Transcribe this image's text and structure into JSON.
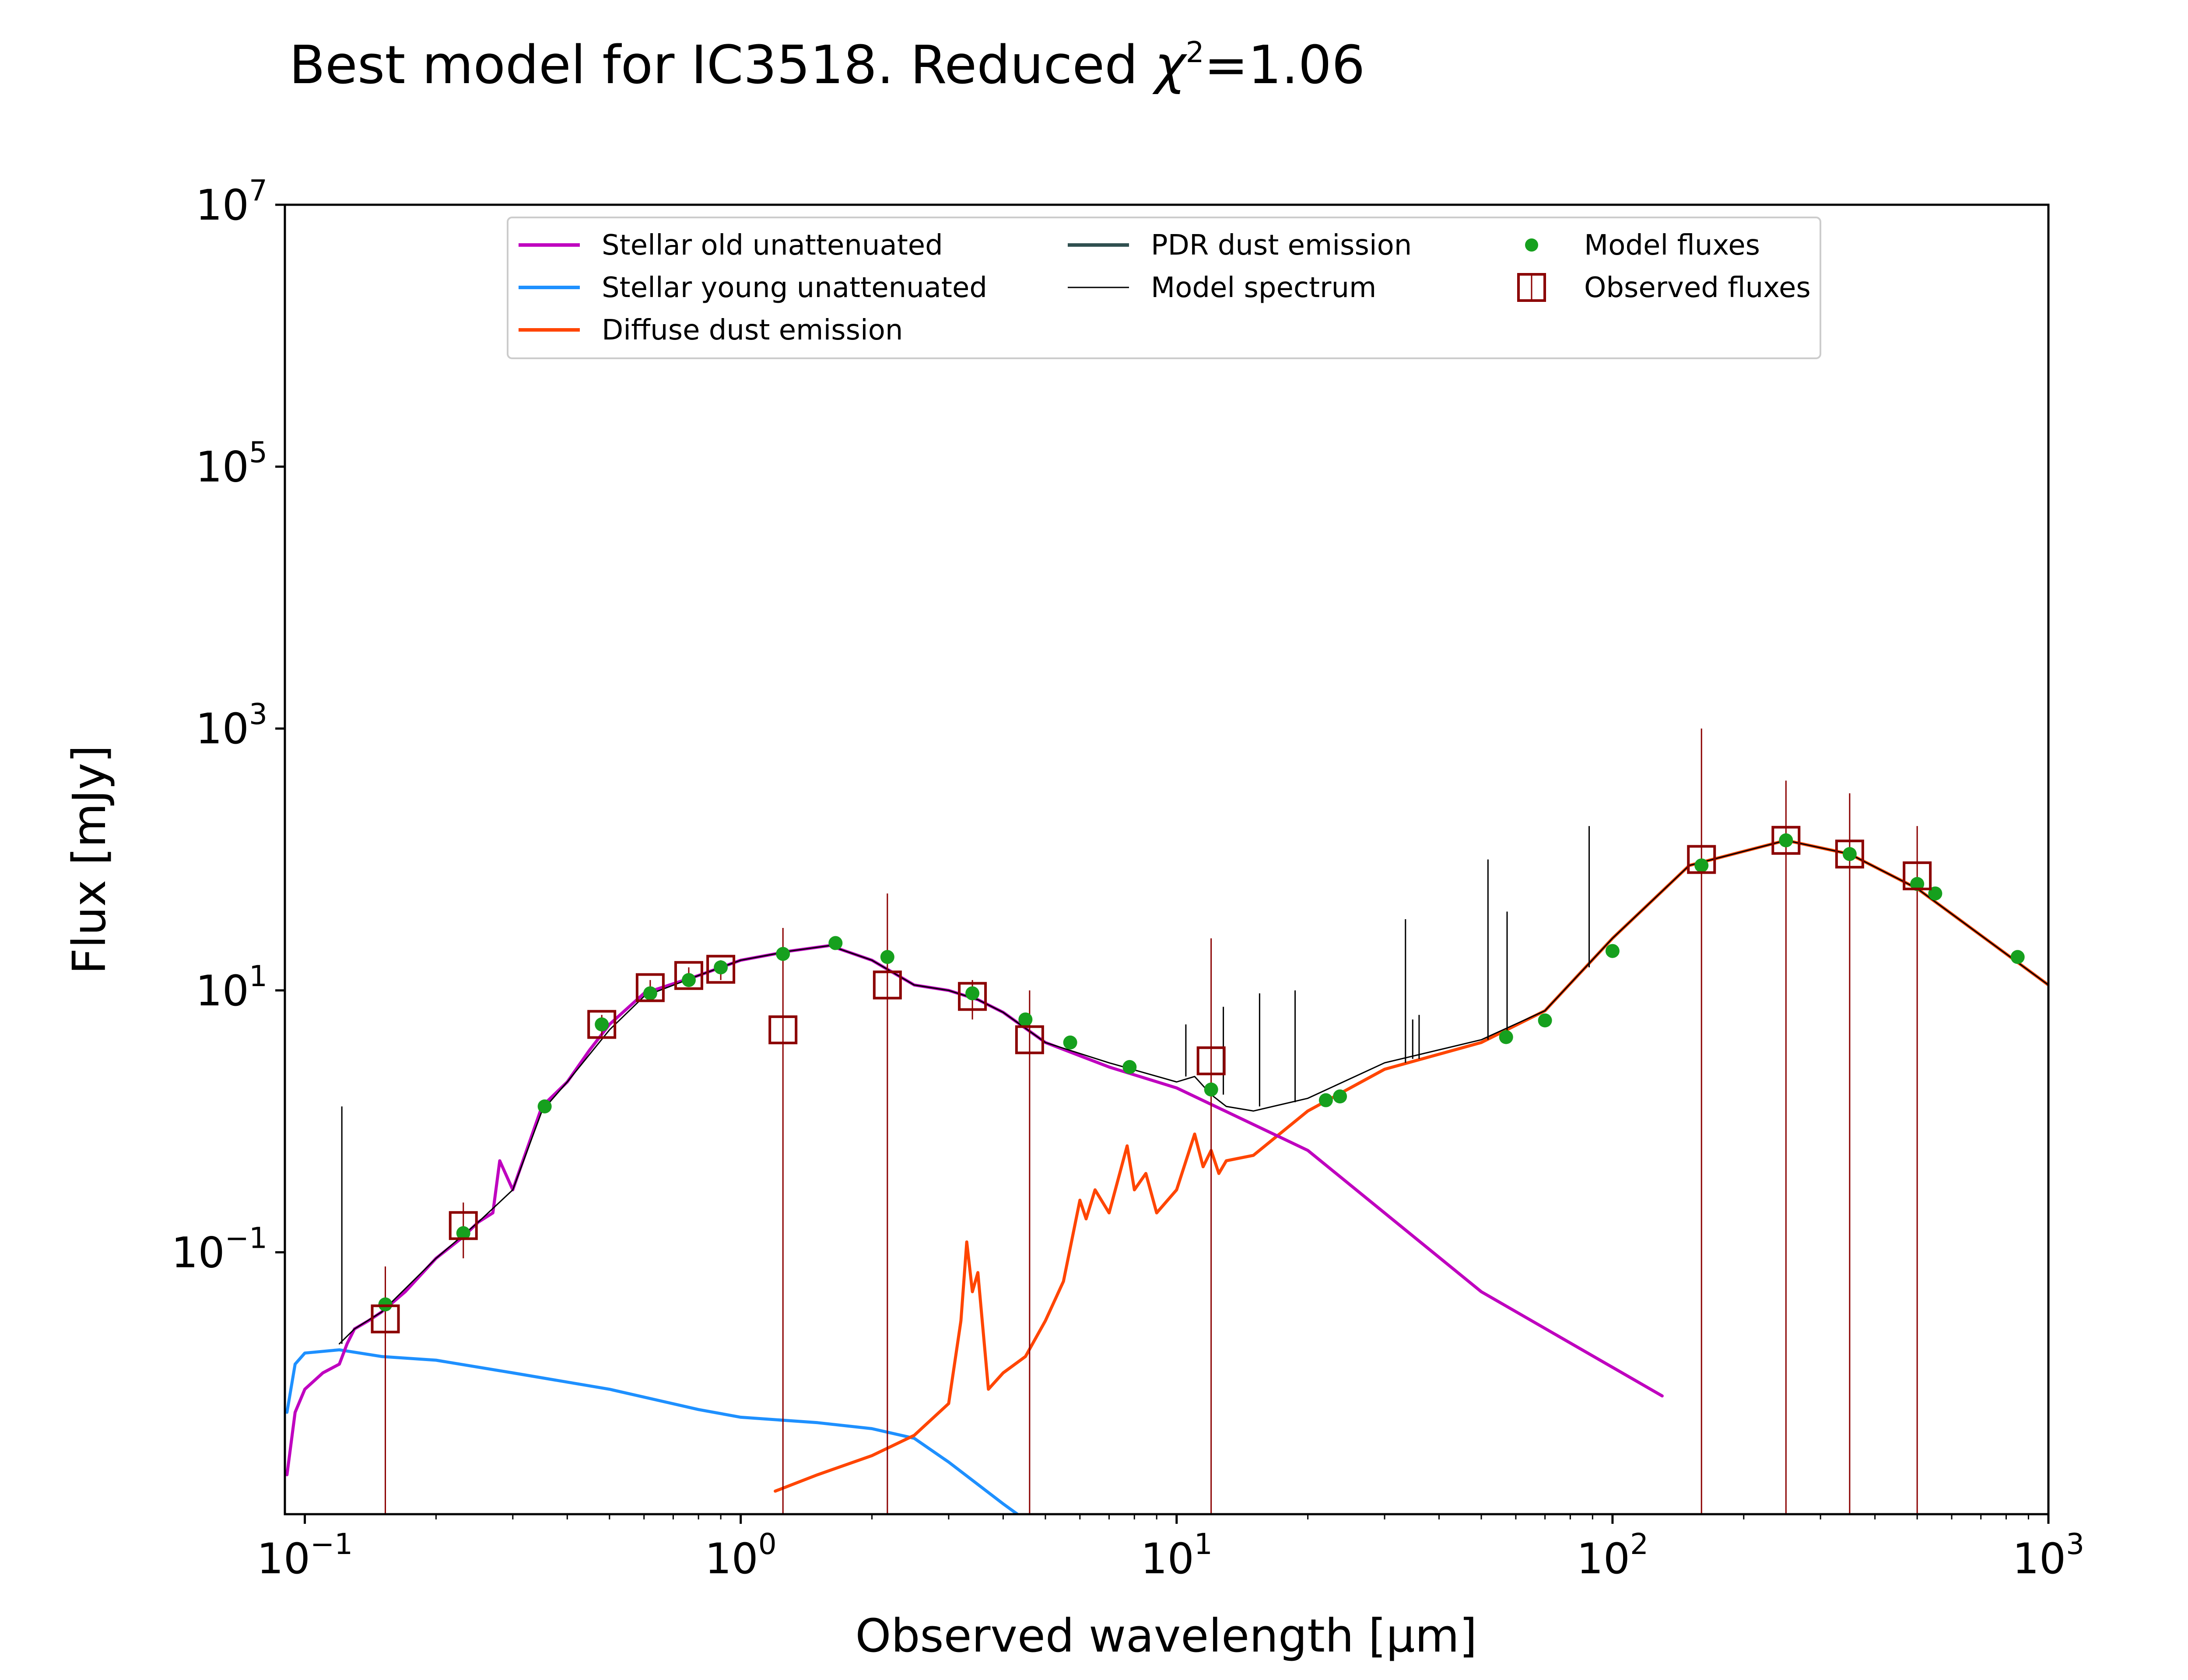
{
  "chart_data": {
    "type": "line",
    "title": "Best model for IC3518. Reduced χ²=1.06",
    "title_parts": {
      "main": "Best model for IC3518. Reduced ",
      "chi": "χ",
      "exp": "2",
      "value": "=1.06"
    },
    "xlabel": "Observed wavelength [μm]",
    "ylabel": "Flux [mJy]",
    "x_scale": "log",
    "y_scale": "log",
    "xlim": [
      0.09,
      1000
    ],
    "ylim": [
      0.001,
      10000000
    ],
    "x_ticks": [
      {
        "value": 0.1,
        "base": "10",
        "exp": "−1"
      },
      {
        "value": 1,
        "base": "10",
        "exp": "0"
      },
      {
        "value": 10,
        "base": "10",
        "exp": "1"
      },
      {
        "value": 100,
        "base": "10",
        "exp": "2"
      },
      {
        "value": 1000,
        "base": "10",
        "exp": "3"
      }
    ],
    "y_ticks": [
      {
        "value": 0.1,
        "base": "10",
        "exp": "−1"
      },
      {
        "value": 10,
        "base": "10",
        "exp": "1"
      },
      {
        "value": 1000,
        "base": "10",
        "exp": "3"
      },
      {
        "value": 100000,
        "base": "10",
        "exp": "5"
      },
      {
        "value": 10000000,
        "base": "10",
        "exp": "7"
      }
    ],
    "grid": false,
    "legend_placement": "top-center",
    "colors": {
      "stellar_old": "#bf00bf",
      "stellar_young": "#1e90ff",
      "diffuse_dust": "#ff4500",
      "pdr_dust": "#2f4f4f",
      "model_spectrum": "#000000",
      "model_fluxes": "#16a01e",
      "observed_fluxes": "#8b0000"
    },
    "series": [
      {
        "name": "Stellar old unattenuated",
        "color": "#bf00bf",
        "x": [
          0.091,
          0.095,
          0.1,
          0.11,
          0.12,
          0.125,
          0.13,
          0.14,
          0.15,
          0.17,
          0.2,
          0.23,
          0.25,
          0.27,
          0.28,
          0.3,
          0.35,
          0.4,
          0.45,
          0.5,
          0.6,
          0.8,
          1.0,
          1.3,
          1.6,
          2.0,
          2.5,
          3.0,
          3.5,
          4.0,
          5.0,
          7.0,
          10,
          20,
          50,
          130
        ],
        "y": [
          0.002,
          0.006,
          0.009,
          0.012,
          0.014,
          0.02,
          0.026,
          0.03,
          0.035,
          0.05,
          0.09,
          0.13,
          0.17,
          0.2,
          0.5,
          0.3,
          1.3,
          2.0,
          3.5,
          5.5,
          9.5,
          13.0,
          17.0,
          20.0,
          22.0,
          17.0,
          11.0,
          10.0,
          8.5,
          6.8,
          4.0,
          2.6,
          1.8,
          0.6,
          0.05,
          0.008
        ]
      },
      {
        "name": "Stellar young unattenuated",
        "color": "#1e90ff",
        "x": [
          0.091,
          0.095,
          0.1,
          0.12,
          0.15,
          0.2,
          0.3,
          0.5,
          0.8,
          1.0,
          1.5,
          2.0,
          2.5,
          3.0,
          4.0,
          5.0
        ],
        "y": [
          0.006,
          0.014,
          0.017,
          0.018,
          0.016,
          0.015,
          0.012,
          0.009,
          0.0063,
          0.0055,
          0.005,
          0.0045,
          0.0038,
          0.0025,
          0.0012,
          0.0007
        ]
      },
      {
        "name": "Diffuse dust emission",
        "color": "#ff4500",
        "x": [
          1.2,
          1.5,
          2.0,
          2.5,
          3.0,
          3.2,
          3.3,
          3.4,
          3.5,
          3.7,
          4.0,
          4.5,
          5.0,
          5.5,
          6.0,
          6.2,
          6.5,
          7.0,
          7.7,
          8.0,
          8.5,
          9.0,
          10,
          11.0,
          11.5,
          12.0,
          12.5,
          13,
          15,
          20,
          30,
          50,
          70,
          100,
          150,
          250,
          350,
          500,
          1000
        ],
        "y": [
          0.0015,
          0.002,
          0.0028,
          0.004,
          0.007,
          0.03,
          0.12,
          0.05,
          0.07,
          0.009,
          0.012,
          0.016,
          0.03,
          0.06,
          0.25,
          0.18,
          0.3,
          0.2,
          0.65,
          0.3,
          0.4,
          0.2,
          0.3,
          0.8,
          0.45,
          0.6,
          0.4,
          0.5,
          0.55,
          1.2,
          2.5,
          4.0,
          7.0,
          25,
          90,
          140,
          110,
          60,
          11
        ]
      },
      {
        "name": "PDR dust emission",
        "color": "#2f4f4f",
        "x": [],
        "y": []
      },
      {
        "name": "Model spectrum",
        "color": "#000000",
        "x": [
          0.12,
          0.13,
          0.15,
          0.2,
          0.25,
          0.3,
          0.35,
          0.4,
          0.5,
          0.6,
          0.8,
          1.0,
          1.3,
          1.6,
          2.0,
          2.5,
          3.0,
          3.5,
          4.0,
          5.0,
          7.0,
          10,
          11,
          12,
          13,
          15,
          20,
          30,
          50,
          70,
          100,
          150,
          250,
          350,
          500,
          1000
        ],
        "y": [
          0.02,
          0.026,
          0.035,
          0.09,
          0.17,
          0.3,
          1.2,
          2.0,
          5.0,
          9.0,
          13.0,
          17.0,
          20.0,
          22.0,
          17.0,
          11.0,
          10.0,
          8.5,
          6.8,
          4.0,
          2.8,
          2.0,
          2.2,
          1.6,
          1.3,
          1.2,
          1.5,
          2.8,
          4.2,
          7.0,
          25,
          90,
          140,
          110,
          60,
          11
        ]
      }
    ],
    "emission_lines": [
      {
        "x": 0.1216,
        "y0": 0.02,
        "y1": 1.3
      },
      {
        "x": 10.5,
        "y0": 2.2,
        "y1": 5.5
      },
      {
        "x": 12.8,
        "y0": 1.6,
        "y1": 7.5
      },
      {
        "x": 15.5,
        "y0": 1.3,
        "y1": 9.5
      },
      {
        "x": 18.7,
        "y0": 1.4,
        "y1": 10.0
      },
      {
        "x": 33.5,
        "y0": 2.8,
        "y1": 35
      },
      {
        "x": 34.8,
        "y0": 3.0,
        "y1": 6.0
      },
      {
        "x": 36.0,
        "y0": 3.0,
        "y1": 6.5
      },
      {
        "x": 51.8,
        "y0": 4.2,
        "y1": 100
      },
      {
        "x": 57.3,
        "y0": 4.5,
        "y1": 40
      },
      {
        "x": 88.4,
        "y0": 15,
        "y1": 180
      }
    ],
    "model_fluxes": {
      "name": "Model fluxes",
      "color": "#16a01e",
      "x": [
        0.153,
        0.231,
        0.355,
        0.48,
        0.62,
        0.76,
        0.9,
        1.25,
        1.65,
        2.17,
        3.4,
        4.5,
        5.7,
        7.8,
        12,
        22,
        23.7,
        57,
        70,
        100,
        160,
        250,
        350,
        500,
        550,
        850
      ],
      "y": [
        0.04,
        0.14,
        1.3,
        5.5,
        9.5,
        12.0,
        15.0,
        19.0,
        23.0,
        18.0,
        9.5,
        6.0,
        4.0,
        2.6,
        1.75,
        1.45,
        1.55,
        4.4,
        5.9,
        20,
        90,
        140,
        110,
        65,
        55,
        18
      ]
    },
    "observed_fluxes": {
      "name": "Observed fluxes",
      "color": "#8b0000",
      "points": [
        {
          "x": 0.153,
          "y": 0.031,
          "err_low": 0.001,
          "err_high": 0.078
        },
        {
          "x": 0.231,
          "y": 0.16,
          "err_low": 0.09,
          "err_high": 0.24
        },
        {
          "x": 0.48,
          "y": 5.5,
          "err_low": 4.5,
          "err_high": 6.5
        },
        {
          "x": 0.62,
          "y": 10.5,
          "err_low": 9.0,
          "err_high": 12.0
        },
        {
          "x": 0.76,
          "y": 13.0,
          "err_low": 11.0,
          "err_high": 15.0
        },
        {
          "x": 0.9,
          "y": 14.5,
          "err_low": 12.0,
          "err_high": 17.0
        },
        {
          "x": 1.25,
          "y": 5.0,
          "err_low": 0.001,
          "err_high": 30
        },
        {
          "x": 2.17,
          "y": 11.0,
          "err_low": 0.001,
          "err_high": 55
        },
        {
          "x": 3.4,
          "y": 9.0,
          "err_low": 6.0,
          "err_high": 12.0
        },
        {
          "x": 4.6,
          "y": 4.2,
          "err_low": 0.001,
          "err_high": 10
        },
        {
          "x": 12,
          "y": 2.9,
          "err_low": 0.001,
          "err_high": 25
        },
        {
          "x": 160,
          "y": 100,
          "err_low": 0.001,
          "err_high": 1000
        },
        {
          "x": 250,
          "y": 140,
          "err_low": 0.001,
          "err_high": 400
        },
        {
          "x": 350,
          "y": 110,
          "err_low": 0.001,
          "err_high": 320
        },
        {
          "x": 500,
          "y": 75,
          "err_low": 0.001,
          "err_high": 180
        }
      ]
    },
    "legend": [
      {
        "label": "Stellar old unattenuated",
        "kind": "line",
        "color": "#bf00bf"
      },
      {
        "label": "Stellar young unattenuated",
        "kind": "line",
        "color": "#1e90ff"
      },
      {
        "label": "Diffuse dust emission",
        "kind": "line",
        "color": "#ff4500"
      },
      {
        "label": "PDR dust emission",
        "kind": "line",
        "color": "#2f4f4f"
      },
      {
        "label": "Model spectrum",
        "kind": "thin-line",
        "color": "#000000"
      },
      {
        "label": "Model fluxes",
        "kind": "dot",
        "color": "#16a01e"
      },
      {
        "label": "Observed fluxes",
        "kind": "square",
        "color": "#8b0000"
      }
    ]
  }
}
